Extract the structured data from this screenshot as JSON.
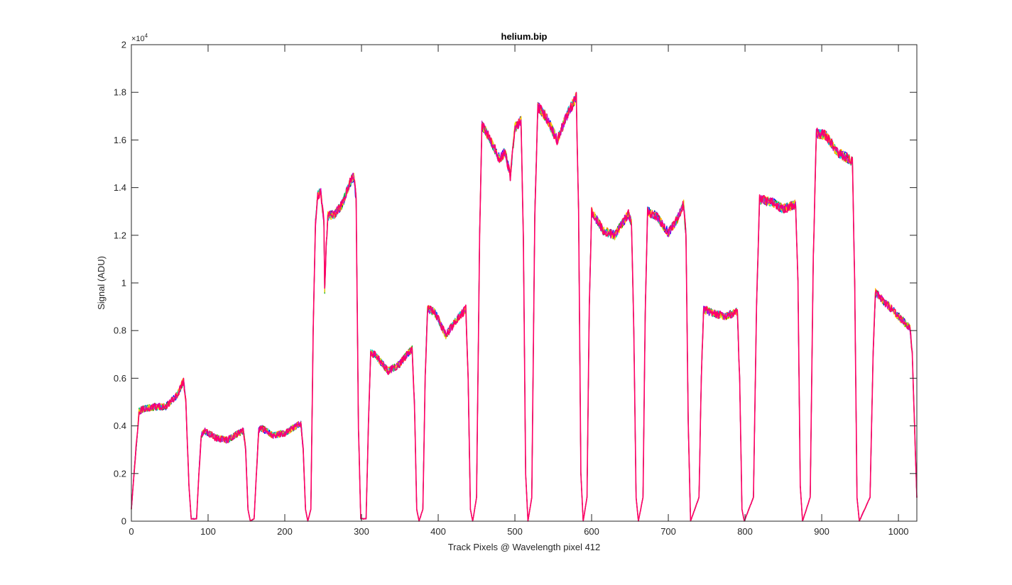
{
  "chart_data": {
    "type": "line",
    "title": "helium.bip",
    "xlabel": "Track Pixels @ Wavelength pixel 412",
    "ylabel": "Signal (ADU)",
    "xlim": [
      0,
      1024
    ],
    "ylim": [
      0,
      2
    ],
    "y_multiplier_base": "×10",
    "y_multiplier_exponent": "4",
    "xticks": [
      0,
      100,
      200,
      300,
      400,
      500,
      600,
      700,
      800,
      900,
      1000
    ],
    "xtick_labels": [
      "0",
      "100",
      "200",
      "300",
      "400",
      "500",
      "600",
      "700",
      "800",
      "900",
      "1000"
    ],
    "yticks": [
      0,
      0.2,
      0.4,
      0.6,
      0.8,
      1,
      1.2,
      1.4,
      1.6,
      1.8,
      2
    ],
    "ytick_labels": [
      "0",
      "0.2",
      "0.4",
      "0.6",
      "0.8",
      "1",
      "1.2",
      "1.4",
      "1.6",
      "1.8",
      "2"
    ],
    "grid": false,
    "box": true,
    "series_colors": [
      "#0000ff",
      "#00aa00",
      "#ff8800",
      "#00cccc",
      "#ffcc00",
      "#cc00cc",
      "#ff0066"
    ],
    "series_profile": [
      [
        0,
        0.05
      ],
      [
        3,
        0.18
      ],
      [
        6,
        0.3
      ],
      [
        10,
        0.46
      ],
      [
        15,
        0.47
      ],
      [
        30,
        0.48
      ],
      [
        45,
        0.48
      ],
      [
        60,
        0.53
      ],
      [
        68,
        0.59
      ],
      [
        71,
        0.5
      ],
      [
        75,
        0.15
      ],
      [
        78,
        0.01
      ],
      [
        85,
        0.01
      ],
      [
        88,
        0.2
      ],
      [
        91,
        0.36
      ],
      [
        95,
        0.38
      ],
      [
        110,
        0.35
      ],
      [
        125,
        0.34
      ],
      [
        140,
        0.37
      ],
      [
        146,
        0.38
      ],
      [
        149,
        0.3
      ],
      [
        152,
        0.05
      ],
      [
        155,
        0.0
      ],
      [
        160,
        0.01
      ],
      [
        163,
        0.2
      ],
      [
        166,
        0.38
      ],
      [
        170,
        0.39
      ],
      [
        185,
        0.36
      ],
      [
        200,
        0.37
      ],
      [
        215,
        0.4
      ],
      [
        221,
        0.41
      ],
      [
        224,
        0.3
      ],
      [
        227,
        0.05
      ],
      [
        230,
        0.0
      ],
      [
        234,
        0.05
      ],
      [
        237,
        0.8
      ],
      [
        240,
        1.25
      ],
      [
        243,
        1.37
      ],
      [
        247,
        1.38
      ],
      [
        251,
        1.25
      ],
      [
        252,
        0.97
      ],
      [
        254,
        1.15
      ],
      [
        256,
        1.28
      ],
      [
        265,
        1.29
      ],
      [
        275,
        1.33
      ],
      [
        285,
        1.42
      ],
      [
        290,
        1.45
      ],
      [
        293,
        1.35
      ],
      [
        296,
        0.4
      ],
      [
        299,
        0.01
      ],
      [
        306,
        0.01
      ],
      [
        309,
        0.4
      ],
      [
        312,
        0.71
      ],
      [
        320,
        0.69
      ],
      [
        335,
        0.63
      ],
      [
        350,
        0.66
      ],
      [
        362,
        0.71
      ],
      [
        366,
        0.72
      ],
      [
        369,
        0.5
      ],
      [
        372,
        0.05
      ],
      [
        375,
        0.0
      ],
      [
        380,
        0.05
      ],
      [
        383,
        0.6
      ],
      [
        386,
        0.89
      ],
      [
        395,
        0.88
      ],
      [
        410,
        0.78
      ],
      [
        425,
        0.85
      ],
      [
        436,
        0.89
      ],
      [
        439,
        0.6
      ],
      [
        442,
        0.05
      ],
      [
        445,
        0.0
      ],
      [
        450,
        0.1
      ],
      [
        454,
        1.2
      ],
      [
        457,
        1.66
      ],
      [
        465,
        1.62
      ],
      [
        480,
        1.52
      ],
      [
        487,
        1.55
      ],
      [
        494,
        1.45
      ],
      [
        500,
        1.65
      ],
      [
        508,
        1.68
      ],
      [
        511,
        1.2
      ],
      [
        514,
        0.2
      ],
      [
        517,
        0.0
      ],
      [
        522,
        0.1
      ],
      [
        526,
        1.3
      ],
      [
        530,
        1.74
      ],
      [
        540,
        1.7
      ],
      [
        555,
        1.6
      ],
      [
        570,
        1.72
      ],
      [
        580,
        1.78
      ],
      [
        583,
        1.3
      ],
      [
        586,
        0.2
      ],
      [
        589,
        0.0
      ],
      [
        594,
        0.1
      ],
      [
        597,
        0.9
      ],
      [
        600,
        1.3
      ],
      [
        615,
        1.22
      ],
      [
        630,
        1.2
      ],
      [
        648,
        1.29
      ],
      [
        652,
        1.25
      ],
      [
        655,
        0.8
      ],
      [
        658,
        0.1
      ],
      [
        661,
        0.0
      ],
      [
        667,
        0.1
      ],
      [
        670,
        0.9
      ],
      [
        673,
        1.3
      ],
      [
        685,
        1.28
      ],
      [
        700,
        1.21
      ],
      [
        712,
        1.27
      ],
      [
        720,
        1.33
      ],
      [
        723,
        1.2
      ],
      [
        726,
        0.4
      ],
      [
        729,
        0.0
      ],
      [
        740,
        0.1
      ],
      [
        743,
        0.6
      ],
      [
        746,
        0.89
      ],
      [
        760,
        0.87
      ],
      [
        775,
        0.86
      ],
      [
        790,
        0.88
      ],
      [
        793,
        0.6
      ],
      [
        796,
        0.05
      ],
      [
        799,
        0.0
      ],
      [
        811,
        0.1
      ],
      [
        815,
        0.9
      ],
      [
        819,
        1.35
      ],
      [
        835,
        1.34
      ],
      [
        850,
        1.31
      ],
      [
        866,
        1.33
      ],
      [
        869,
        1.0
      ],
      [
        872,
        0.15
      ],
      [
        875,
        0.0
      ],
      [
        885,
        0.1
      ],
      [
        889,
        1.1
      ],
      [
        893,
        1.63
      ],
      [
        905,
        1.62
      ],
      [
        920,
        1.55
      ],
      [
        935,
        1.52
      ],
      [
        940,
        1.51
      ],
      [
        943,
        1.0
      ],
      [
        946,
        0.1
      ],
      [
        949,
        0.0
      ],
      [
        963,
        0.1
      ],
      [
        967,
        0.7
      ],
      [
        970,
        0.96
      ],
      [
        985,
        0.91
      ],
      [
        1000,
        0.86
      ],
      [
        1015,
        0.81
      ],
      [
        1018,
        0.7
      ],
      [
        1021,
        0.4
      ],
      [
        1024,
        0.1
      ]
    ]
  }
}
